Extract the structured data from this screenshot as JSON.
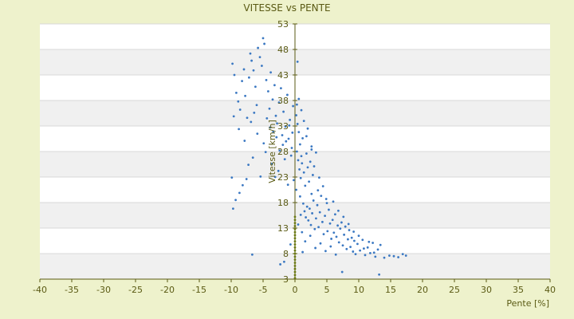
{
  "chart_data": {
    "type": "scatter",
    "title": "VITESSE vs PENTE",
    "xlabel": "Pente [%]",
    "ylabel": "Vitesse [km/h]",
    "xlim": [
      -40,
      40
    ],
    "ylim": [
      3,
      53
    ],
    "x_ticks": [
      -40,
      -35,
      -30,
      -25,
      -20,
      -15,
      -10,
      -5,
      0,
      5,
      10,
      15,
      20,
      25,
      30,
      35,
      40
    ],
    "y_ticks": [
      3,
      8,
      13,
      18,
      23,
      28,
      33,
      38,
      43,
      48,
      53
    ],
    "grid": "horizontal alternating bands",
    "colors": {
      "background": "#eef2cc",
      "plot_band_light": "#ffffff",
      "plot_band_dark": "#f0f0f0",
      "grid": "#d8d8d8",
      "axis": "#5a5a14",
      "points": "#3b78c2",
      "text": "#5a5a14",
      "zero_cluster": "#6b7a10"
    },
    "series": [
      {
        "points": [
          [
            -9.8,
            45.2
          ],
          [
            -9.5,
            43.0
          ],
          [
            -9.2,
            39.5
          ],
          [
            -8.9,
            37.8
          ],
          [
            -8.6,
            36.2
          ],
          [
            -8.3,
            41.8
          ],
          [
            -8.0,
            44.1
          ],
          [
            -7.8,
            38.9
          ],
          [
            -7.5,
            34.6
          ],
          [
            -7.2,
            42.5
          ],
          [
            -7.0,
            47.2
          ],
          [
            -6.8,
            45.8
          ],
          [
            -6.5,
            43.9
          ],
          [
            -6.2,
            40.7
          ],
          [
            -6.0,
            37.1
          ],
          [
            -5.8,
            48.3
          ],
          [
            -5.5,
            46.5
          ],
          [
            -5.2,
            44.8
          ],
          [
            -5.0,
            50.2
          ],
          [
            -4.8,
            49.1
          ],
          [
            -4.5,
            42.0
          ],
          [
            -4.2,
            39.8
          ],
          [
            -4.0,
            36.4
          ],
          [
            -3.8,
            43.5
          ],
          [
            -3.5,
            38.2
          ],
          [
            -3.2,
            41.0
          ],
          [
            -3.0,
            35.0
          ],
          [
            -2.8,
            33.5
          ],
          [
            -2.5,
            37.6
          ],
          [
            -2.2,
            40.4
          ],
          [
            -2.0,
            31.2
          ],
          [
            -1.8,
            35.8
          ],
          [
            -1.5,
            32.9
          ],
          [
            -1.2,
            39.1
          ],
          [
            -1.0,
            30.5
          ],
          [
            -0.8,
            34.2
          ],
          [
            -0.5,
            28.7
          ],
          [
            -0.3,
            36.9
          ],
          [
            -8.8,
            32.4
          ],
          [
            -7.9,
            30.1
          ],
          [
            -6.9,
            33.8
          ],
          [
            -5.9,
            31.5
          ],
          [
            -4.9,
            29.6
          ],
          [
            -3.9,
            32.7
          ],
          [
            -2.9,
            30.8
          ],
          [
            -1.9,
            29.3
          ],
          [
            -0.9,
            33.1
          ],
          [
            -9.6,
            34.9
          ],
          [
            -6.4,
            35.6
          ],
          [
            -4.4,
            34.5
          ],
          [
            -3.4,
            31.9
          ],
          [
            -2.4,
            28.2
          ],
          [
            -1.4,
            30.0
          ],
          [
            -0.4,
            31.7
          ],
          [
            -9.7,
            16.8
          ],
          [
            -9.3,
            18.5
          ],
          [
            -8.7,
            19.9
          ],
          [
            -8.2,
            21.4
          ],
          [
            -7.6,
            22.6
          ],
          [
            -9.9,
            22.9
          ],
          [
            -7.3,
            25.4
          ],
          [
            -6.6,
            26.8
          ],
          [
            -5.4,
            23.1
          ],
          [
            -4.6,
            27.9
          ],
          [
            -3.6,
            25.6
          ],
          [
            -2.6,
            24.2
          ],
          [
            -1.6,
            26.5
          ],
          [
            -0.6,
            27.2
          ],
          [
            -6.7,
            7.8
          ],
          [
            -2.3,
            5.9
          ],
          [
            -1.7,
            6.4
          ],
          [
            -0.7,
            9.8
          ],
          [
            -1.1,
            21.5
          ],
          [
            -0.2,
            22.4
          ],
          [
            -3.1,
            23.0
          ],
          [
            0.2,
            35.1
          ],
          [
            0.4,
            33.4
          ],
          [
            0.6,
            31.8
          ],
          [
            0.8,
            29.4
          ],
          [
            1.0,
            27.1
          ],
          [
            1.2,
            30.6
          ],
          [
            0.3,
            28.0
          ],
          [
            0.5,
            26.3
          ],
          [
            0.7,
            24.5
          ],
          [
            0.9,
            22.8
          ],
          [
            1.1,
            25.7
          ],
          [
            1.4,
            23.9
          ],
          [
            1.6,
            21.3
          ],
          [
            1.8,
            27.6
          ],
          [
            2.0,
            24.9
          ],
          [
            2.2,
            22.1
          ],
          [
            2.4,
            26.0
          ],
          [
            2.6,
            28.4
          ],
          [
            2.8,
            23.4
          ],
          [
            3.0,
            25.1
          ],
          [
            3.3,
            27.8
          ],
          [
            0.4,
            45.6
          ],
          [
            0.6,
            38.3
          ],
          [
            0.2,
            20.5
          ],
          [
            0.8,
            19.2
          ],
          [
            1.3,
            17.8
          ],
          [
            1.5,
            16.3
          ],
          [
            1.7,
            15.1
          ],
          [
            1.9,
            17.2
          ],
          [
            2.1,
            14.5
          ],
          [
            2.3,
            16.8
          ],
          [
            2.5,
            13.6
          ],
          [
            2.7,
            15.9
          ],
          [
            2.9,
            18.4
          ],
          [
            3.1,
            12.8
          ],
          [
            3.3,
            14.9
          ],
          [
            3.5,
            17.5
          ],
          [
            3.7,
            13.2
          ],
          [
            3.9,
            16.1
          ],
          [
            4.1,
            19.3
          ],
          [
            4.3,
            14.2
          ],
          [
            4.5,
            11.8
          ],
          [
            4.7,
            15.4
          ],
          [
            4.9,
            18.7
          ],
          [
            5.1,
            12.4
          ],
          [
            5.3,
            16.6
          ],
          [
            5.5,
            13.9
          ],
          [
            5.7,
            10.9
          ],
          [
            5.9,
            14.6
          ],
          [
            6.1,
            12.1
          ],
          [
            6.3,
            15.7
          ],
          [
            6.5,
            11.3
          ],
          [
            6.7,
            13.5
          ],
          [
            6.9,
            10.2
          ],
          [
            7.1,
            12.9
          ],
          [
            7.3,
            14.1
          ],
          [
            7.5,
            9.6
          ],
          [
            7.7,
            11.7
          ],
          [
            7.9,
            13.3
          ],
          [
            8.1,
            8.9
          ],
          [
            8.3,
            10.8
          ],
          [
            8.5,
            12.6
          ],
          [
            8.7,
            9.3
          ],
          [
            8.9,
            11.1
          ],
          [
            9.1,
            8.4
          ],
          [
            9.3,
            10.5
          ],
          [
            9.5,
            7.9
          ],
          [
            9.8,
            9.9
          ],
          [
            10.2,
            8.6
          ],
          [
            10.6,
            10.7
          ],
          [
            11.0,
            7.7
          ],
          [
            11.4,
            9.2
          ],
          [
            11.8,
            8.1
          ],
          [
            12.2,
            10.1
          ],
          [
            12.6,
            7.4
          ],
          [
            13.0,
            8.8
          ],
          [
            13.4,
            9.7
          ],
          [
            14.0,
            7.2
          ],
          [
            14.8,
            7.6
          ],
          [
            15.5,
            7.5
          ],
          [
            16.2,
            7.3
          ],
          [
            16.9,
            7.9
          ],
          [
            17.4,
            7.6
          ],
          [
            13.2,
            3.9
          ],
          [
            7.4,
            4.4
          ],
          [
            1.2,
            8.3
          ],
          [
            1.6,
            10.4
          ],
          [
            2.4,
            11.5
          ],
          [
            3.2,
            9.1
          ],
          [
            4.0,
            10.0
          ],
          [
            4.8,
            8.5
          ],
          [
            5.6,
            9.4
          ],
          [
            6.4,
            7.8
          ],
          [
            0.5,
            13.7
          ],
          [
            0.9,
            15.6
          ],
          [
            1.1,
            12.2
          ],
          [
            2.6,
            19.7
          ],
          [
            3.6,
            20.4
          ],
          [
            4.4,
            21.2
          ],
          [
            5.0,
            17.9
          ],
          [
            6.0,
            18.2
          ],
          [
            6.8,
            16.4
          ],
          [
            7.6,
            15.2
          ],
          [
            8.4,
            13.8
          ],
          [
            9.2,
            12.3
          ],
          [
            10.0,
            11.5
          ],
          [
            10.8,
            9.0
          ],
          [
            11.6,
            10.3
          ],
          [
            12.4,
            8.2
          ],
          [
            3.8,
            22.9
          ],
          [
            2.0,
            32.5
          ],
          [
            1.4,
            34.0
          ],
          [
            0.3,
            37.2
          ],
          [
            1.0,
            36.1
          ],
          [
            1.8,
            31.0
          ],
          [
            2.6,
            29.0
          ]
        ]
      },
      {
        "points": [
          [
            0,
            3.2
          ],
          [
            0,
            3.8
          ],
          [
            0,
            4.4
          ],
          [
            0,
            5.0
          ],
          [
            0,
            5.6
          ],
          [
            0,
            6.2
          ],
          [
            0,
            6.8
          ],
          [
            0,
            7.4
          ],
          [
            0,
            8.0
          ],
          [
            0,
            8.6
          ],
          [
            0,
            9.2
          ],
          [
            0,
            9.8
          ],
          [
            0,
            10.4
          ],
          [
            0,
            11.0
          ],
          [
            0,
            11.6
          ],
          [
            0,
            12.2
          ],
          [
            0,
            12.8
          ],
          [
            0,
            13.4
          ],
          [
            0,
            14.0
          ],
          [
            0,
            14.6
          ],
          [
            0,
            15.2
          ]
        ]
      }
    ]
  }
}
